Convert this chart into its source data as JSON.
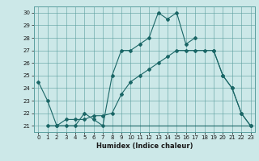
{
  "xlabel": "Humidex (Indice chaleur)",
  "bg_color": "#cce8e8",
  "grid_color": "#5a9e9e",
  "line_color": "#1a6666",
  "xlim": [
    -0.5,
    23.5
  ],
  "ylim": [
    20.5,
    30.5
  ],
  "xticks": [
    0,
    1,
    2,
    3,
    4,
    5,
    6,
    7,
    8,
    9,
    10,
    11,
    12,
    13,
    14,
    15,
    16,
    17,
    18,
    19,
    20,
    21,
    22,
    23
  ],
  "yticks": [
    21,
    22,
    23,
    24,
    25,
    26,
    27,
    28,
    29,
    30
  ],
  "line1_x": [
    0,
    1,
    2,
    3,
    4,
    5,
    6,
    7,
    8,
    9,
    10,
    11,
    12,
    13,
    14,
    15,
    16,
    17,
    18,
    19,
    20,
    21,
    22,
    23
  ],
  "line1_y": [
    24.5,
    23,
    21,
    21,
    21,
    22,
    21.5,
    21,
    25,
    27,
    27,
    27.5,
    28,
    30,
    29.5,
    30,
    27.5,
    28,
    null,
    27,
    25,
    24,
    22,
    21
  ],
  "line2_x": [
    1,
    2,
    3,
    4,
    5,
    6,
    7,
    8,
    9,
    10,
    11,
    12,
    13,
    14,
    15,
    16,
    17,
    18,
    19,
    20,
    21,
    22,
    23
  ],
  "line2_y": [
    21,
    21,
    21,
    21,
    21,
    21,
    21,
    21,
    21,
    21,
    21,
    21,
    21,
    21,
    21,
    21,
    21,
    21,
    21,
    21,
    21,
    21,
    21
  ],
  "line3_x": [
    1,
    2,
    3,
    4,
    5,
    6,
    7,
    8,
    9,
    10,
    11,
    12,
    13,
    14,
    15,
    16,
    17,
    18,
    19,
    20,
    21,
    22,
    23
  ],
  "line3_y": [
    21,
    21,
    21.5,
    21.5,
    21.5,
    21.8,
    21.8,
    22,
    23.5,
    24.5,
    25,
    25.5,
    26,
    26.5,
    27,
    27,
    27,
    27,
    27,
    25,
    24,
    22,
    21
  ]
}
